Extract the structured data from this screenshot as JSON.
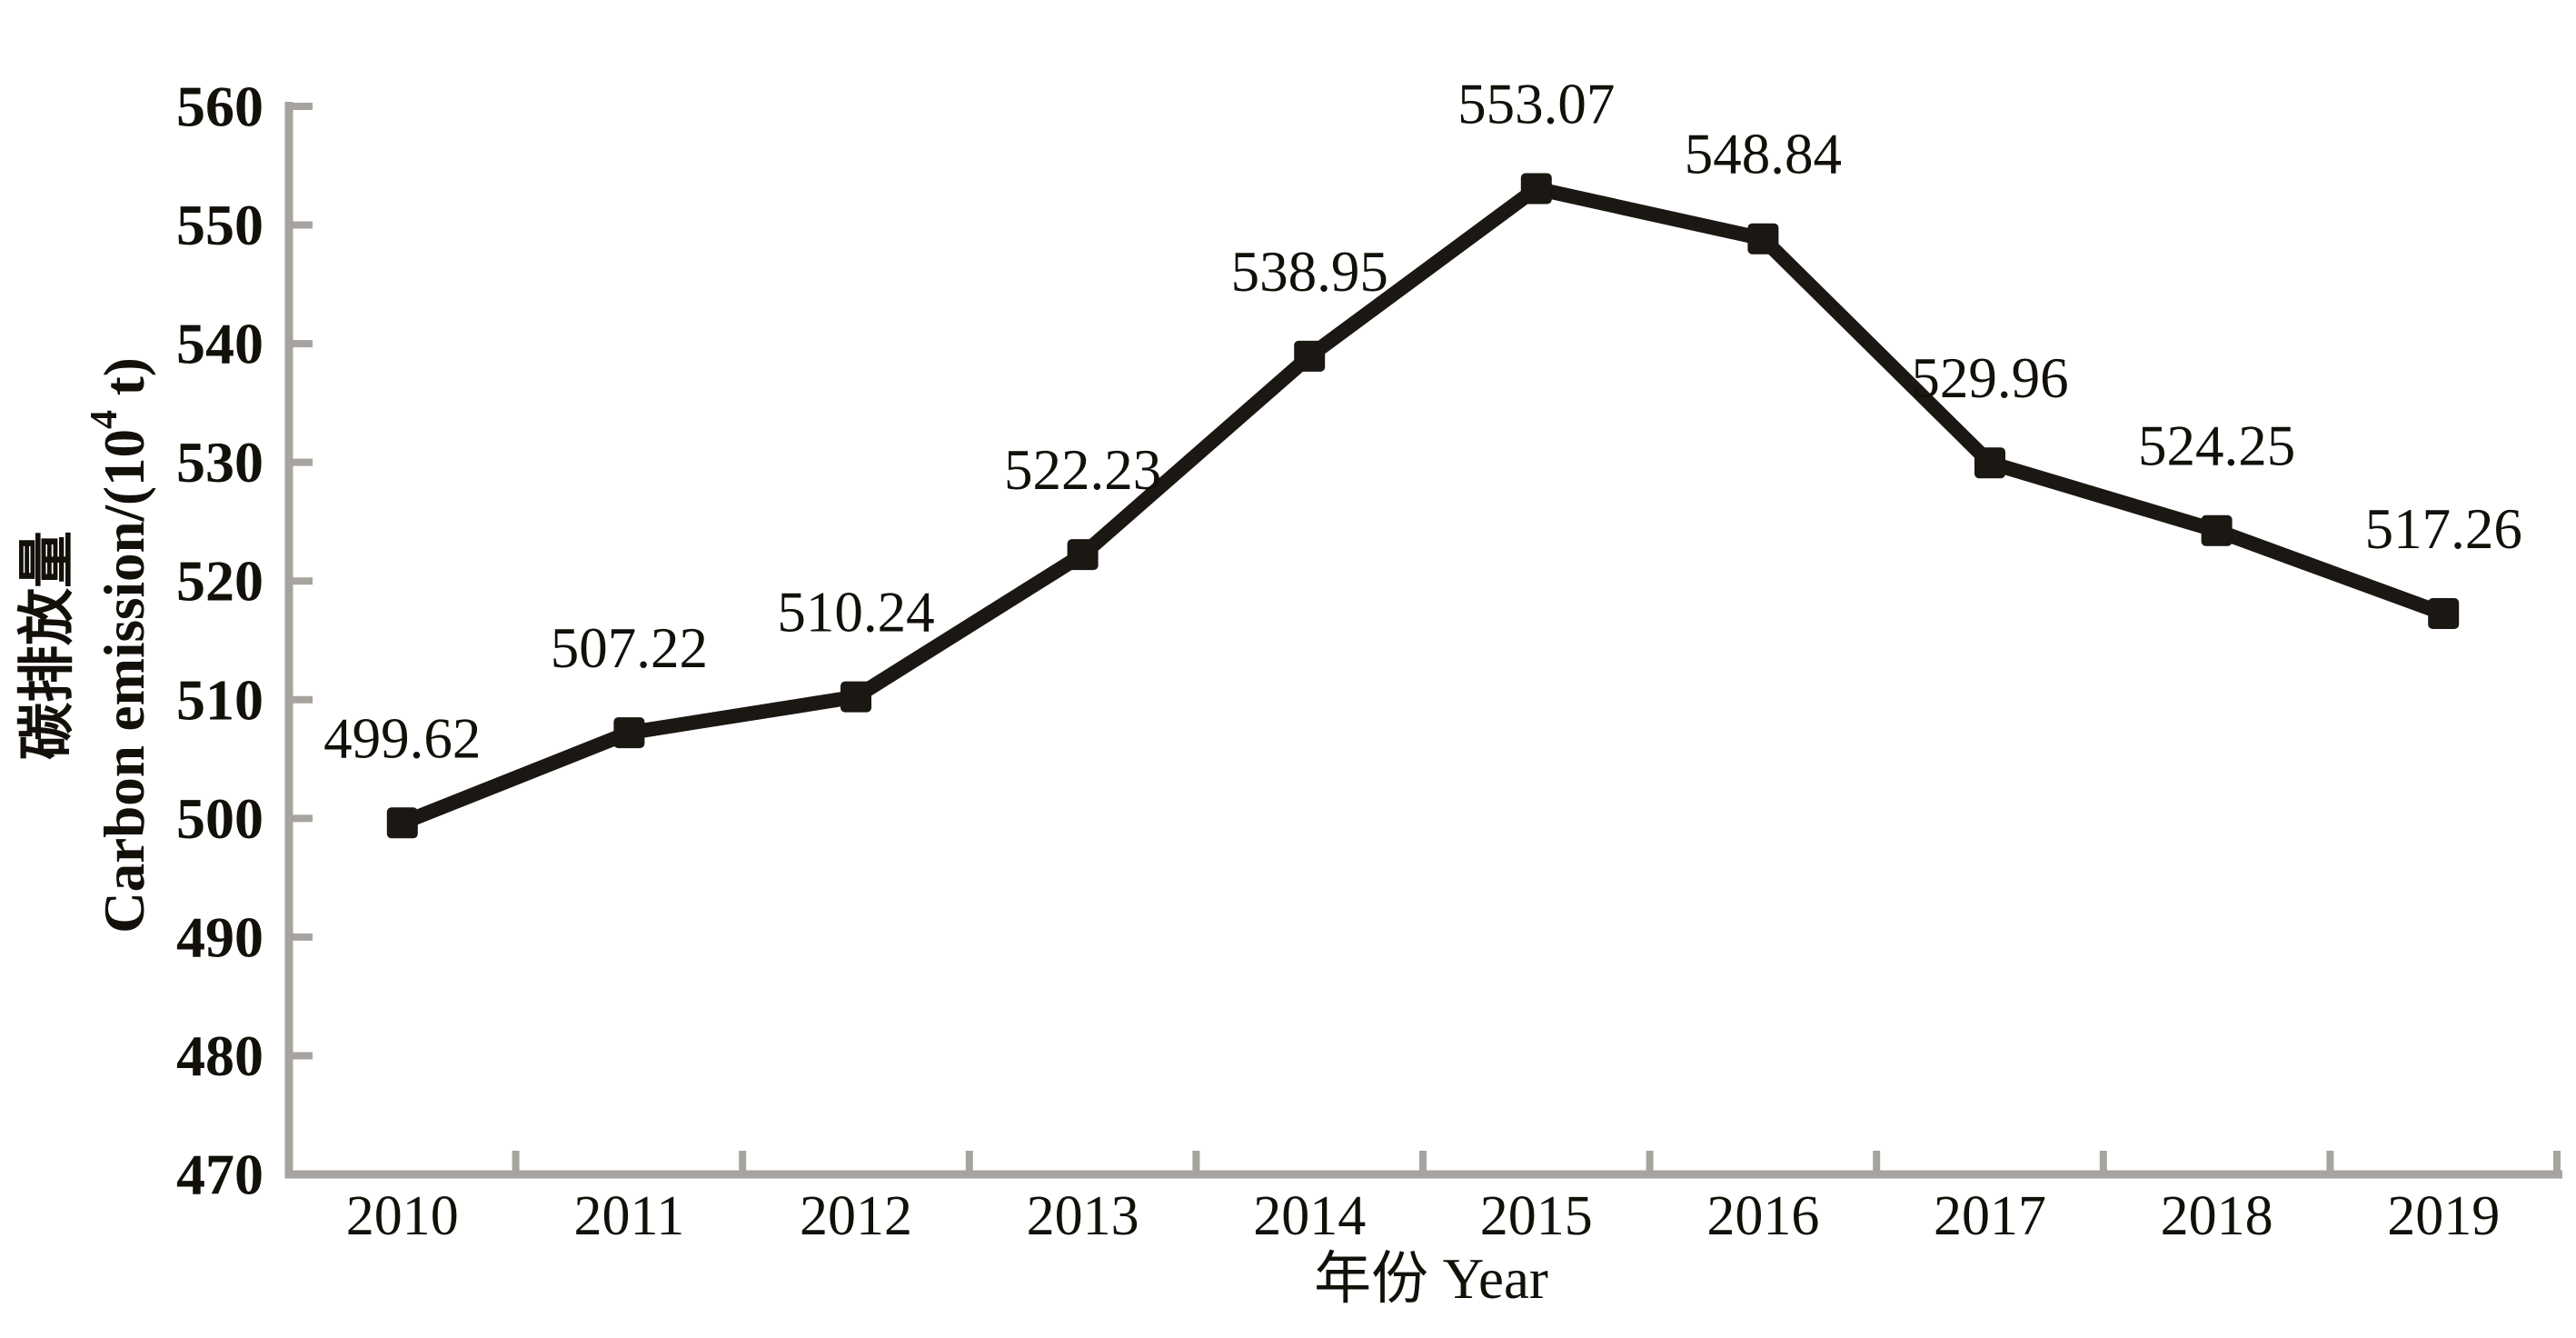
{
  "chart_data": {
    "type": "line",
    "categories": [
      "2010",
      "2011",
      "2012",
      "2013",
      "2014",
      "2015",
      "2016",
      "2017",
      "2018",
      "2019"
    ],
    "series": [
      {
        "name": "Carbon emission",
        "values": [
          499.62,
          507.22,
          510.24,
          522.23,
          538.95,
          553.07,
          548.84,
          529.96,
          524.25,
          517.26
        ]
      }
    ],
    "point_labels": [
      "499.62",
      "507.22",
      "510.24",
      "522.23",
      "538.95",
      "553.07",
      "548.84",
      "529.96",
      "524.25",
      "517.26"
    ],
    "yticks": [
      470,
      480,
      490,
      500,
      510,
      520,
      530,
      540,
      550,
      560
    ],
    "ylim": [
      470,
      560
    ],
    "xlabel": "年份 Year",
    "ylabel_zh": "碳排放量",
    "ylabel_en_prefix": "Carbon emission/(10",
    "ylabel_en_sup": "4",
    "ylabel_en_suffix": " t)",
    "grid": false,
    "legend_position": "none",
    "colors": {
      "line": "#1b1712",
      "marker": "#1b1712",
      "axis": "#a7a39e",
      "text": "#121009",
      "background": "#ffffff"
    }
  }
}
